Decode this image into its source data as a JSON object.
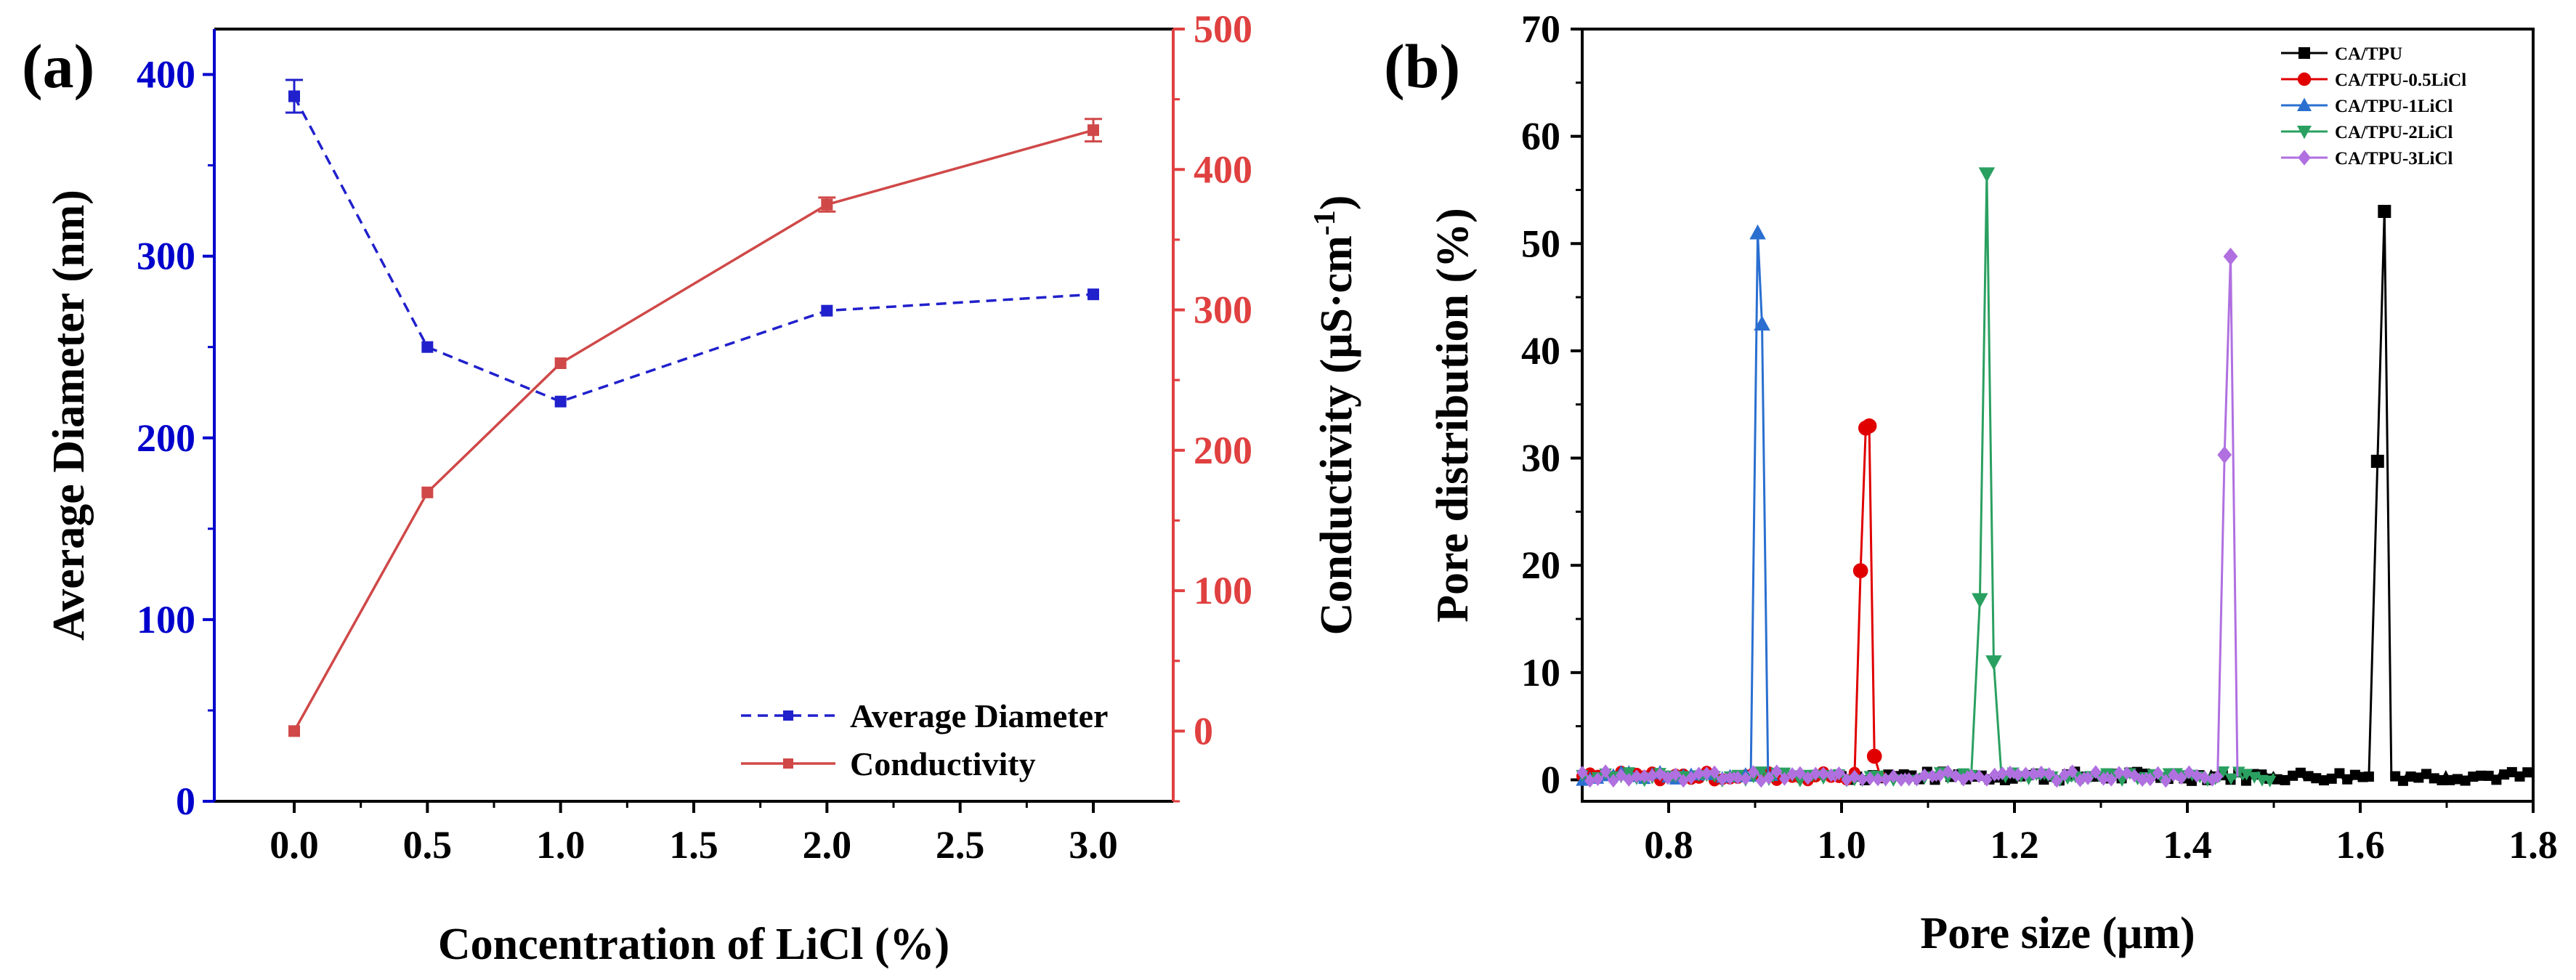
{
  "chart_data": [
    {
      "panel": "(a)",
      "type": "line",
      "xlabel": "Concentration of LiCl (%)",
      "x": [
        0.0,
        0.5,
        1.0,
        2.0,
        3.0
      ],
      "xlim": [
        -0.3,
        3.3
      ],
      "xticks": [
        0.0,
        0.5,
        1.0,
        1.5,
        2.0,
        2.5,
        3.0
      ],
      "xtick_labels": [
        "0.0",
        "0.5",
        "1.0",
        "1.5",
        "2.0",
        "2.5",
        "3.0"
      ],
      "left_axis": {
        "label": "Average Diameter (nm)",
        "color": "#0000cc",
        "ylim": [
          0,
          425
        ],
        "ticks": [
          0,
          100,
          200,
          300,
          400
        ],
        "tick_labels": [
          "0",
          "100",
          "200",
          "300",
          "400"
        ]
      },
      "right_axis": {
        "label_main": "Conductivity (μS·cm",
        "label_sup": "-1",
        "label_end": ")",
        "color": "#e04040",
        "ylim": [
          -50,
          500
        ],
        "ticks": [
          0,
          100,
          200,
          300,
          400,
          500
        ],
        "tick_labels": [
          "0",
          "100",
          "200",
          "300",
          "400",
          "500"
        ]
      },
      "series": [
        {
          "name": "Average Diameter",
          "axis": "left",
          "color": "#2020cc",
          "style": "dashed",
          "marker": "square",
          "values": [
            388,
            250,
            220,
            270,
            279
          ],
          "errors": [
            9,
            0,
            0,
            0,
            0
          ]
        },
        {
          "name": "Conductivity",
          "axis": "right",
          "color": "#d04848",
          "style": "solid",
          "marker": "square",
          "values": [
            0,
            170,
            262,
            375,
            428
          ],
          "errors": [
            0,
            0,
            0,
            5,
            8
          ]
        }
      ],
      "legend": "bottom-right",
      "legend_labels": [
        "Average Diameter",
        "Conductivity"
      ]
    },
    {
      "panel": "(b)",
      "type": "line",
      "xlabel": "Pore size (μm)",
      "ylabel": "Pore distribution (%)",
      "xlim": [
        0.7,
        1.8
      ],
      "ylim": [
        -2,
        70
      ],
      "xticks": [
        0.8,
        1.0,
        1.2,
        1.4,
        1.6,
        1.8
      ],
      "xtick_labels": [
        "0.8",
        "1.0",
        "1.2",
        "1.4",
        "1.6",
        "1.8"
      ],
      "yticks": [
        0,
        10,
        20,
        30,
        40,
        50,
        60,
        70
      ],
      "ytick_labels": [
        "0",
        "10",
        "20",
        "30",
        "40",
        "50",
        "60",
        "70"
      ],
      "legend": "top-right",
      "legend_labels": [
        "CA/TPU",
        "CA/TPU-0.5LiCl",
        "CA/TPU-1LiCl",
        "CA/TPU-2LiCl",
        "CA/TPU-3LiCl"
      ],
      "series": [
        {
          "name": "CA/TPU",
          "color": "#000000",
          "marker": "square",
          "base_range": [
            1.0,
            1.8
          ],
          "peak": [
            [
              1.61,
              0.3
            ],
            [
              1.62,
              29.7
            ],
            [
              1.628,
              53.0
            ],
            [
              1.636,
              0.3
            ]
          ]
        },
        {
          "name": "CA/TPU-0.5LiCl",
          "color": "#e00000",
          "marker": "circle",
          "base_range": [
            0.7,
            1.04
          ],
          "peak": [
            [
              1.015,
              0.3
            ],
            [
              1.022,
              19.5
            ],
            [
              1.028,
              32.8
            ],
            [
              1.032,
              33.0
            ],
            [
              1.038,
              2.2
            ],
            [
              1.045,
              0.3
            ]
          ]
        },
        {
          "name": "CA/TPU-1LiCl",
          "color": "#2a6fd0",
          "marker": "triangle-up",
          "base_range": [
            0.7,
            0.92
          ],
          "peak": [
            [
              0.895,
              0.3
            ],
            [
              0.903,
              51.0
            ],
            [
              0.908,
              42.5
            ],
            [
              0.915,
              0.3
            ]
          ]
        },
        {
          "name": "CA/TPU-2LiCl",
          "color": "#2aa060",
          "marker": "triangle-down",
          "base_range": [
            0.7,
            1.5
          ],
          "peak": [
            [
              1.15,
              0.3
            ],
            [
              1.16,
              16.8
            ],
            [
              1.168,
              56.5
            ],
            [
              1.176,
              11.0
            ],
            [
              1.185,
              0.3
            ]
          ]
        },
        {
          "name": "CA/TPU-3LiCl",
          "color": "#b070e0",
          "marker": "diamond",
          "base_range": [
            0.7,
            1.45
          ],
          "peak": [
            [
              1.435,
              0.3
            ],
            [
              1.443,
              30.3
            ],
            [
              1.45,
              48.8
            ],
            [
              1.458,
              0.3
            ]
          ]
        }
      ]
    }
  ]
}
